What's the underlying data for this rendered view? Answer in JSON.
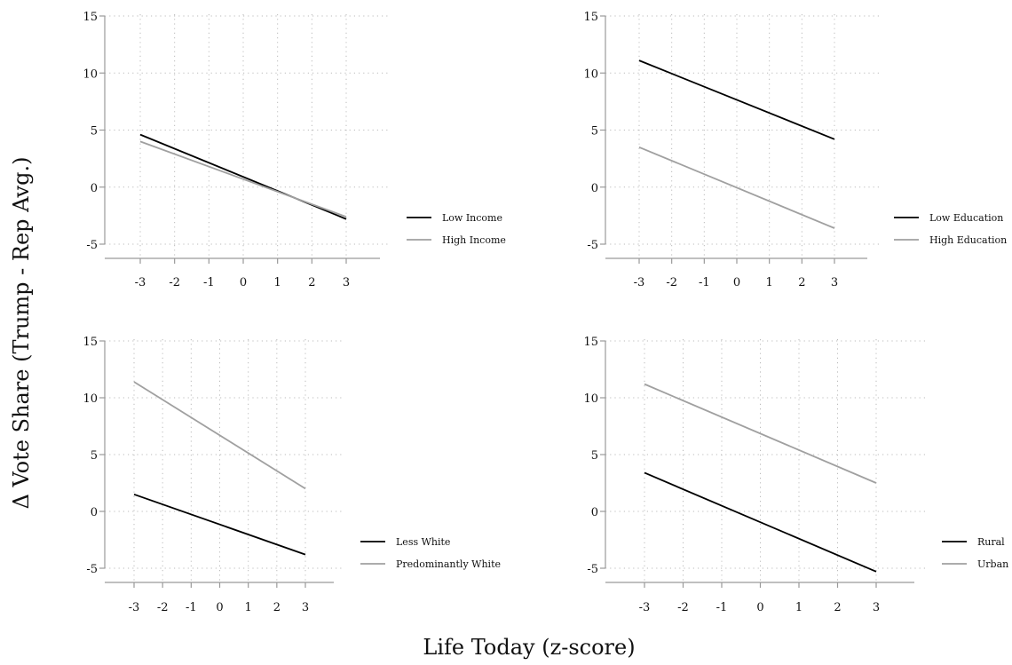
{
  "figure": {
    "ylabel": "Δ Vote Share (Trump - Rep Avg.)",
    "xlabel": "Life Today (z-score)"
  },
  "colors": {
    "low_group": "#000000",
    "high_group": "#a0a0a0",
    "grid": "#bbbbbb",
    "axis": "#9a9a9a"
  },
  "chart_data": [
    {
      "type": "line",
      "x_ticks": [
        "-3",
        "-2",
        "-1",
        "0",
        "1",
        "2",
        "3"
      ],
      "y_ticks": [
        "-5",
        "0",
        "5",
        "10",
        "15"
      ],
      "xlim": [
        -3,
        3
      ],
      "ylim": [
        -5,
        15
      ],
      "grid": true,
      "legend_position": "right",
      "series": [
        {
          "name": "Low Income",
          "x": [
            -3,
            3
          ],
          "y": [
            4.6,
            -2.8
          ],
          "color": "#000000"
        },
        {
          "name": "High Income",
          "x": [
            -3,
            3
          ],
          "y": [
            4.0,
            -2.6
          ],
          "color": "#a0a0a0"
        }
      ]
    },
    {
      "type": "line",
      "x_ticks": [
        "-3",
        "-2",
        "-1",
        "0",
        "1",
        "2",
        "3"
      ],
      "y_ticks": [
        "-5",
        "0",
        "5",
        "10",
        "15"
      ],
      "xlim": [
        -3,
        3
      ],
      "ylim": [
        -5,
        15
      ],
      "grid": true,
      "legend_position": "right",
      "series": [
        {
          "name": "Low Education",
          "x": [
            -3,
            3
          ],
          "y": [
            11.1,
            4.2
          ],
          "color": "#000000"
        },
        {
          "name": "High Education",
          "x": [
            -3,
            3
          ],
          "y": [
            3.5,
            -3.6
          ],
          "color": "#a0a0a0"
        }
      ]
    },
    {
      "type": "line",
      "x_ticks": [
        "-3",
        "-2",
        "-1",
        "0",
        "1",
        "2",
        "3"
      ],
      "y_ticks": [
        "-5",
        "0",
        "5",
        "10",
        "15"
      ],
      "xlim": [
        -3,
        3
      ],
      "ylim": [
        -5,
        15
      ],
      "grid": true,
      "legend_position": "right",
      "series": [
        {
          "name": "Less White",
          "x": [
            -3,
            3
          ],
          "y": [
            1.5,
            -3.8
          ],
          "color": "#000000"
        },
        {
          "name": "Predominantly White",
          "x": [
            -3,
            3
          ],
          "y": [
            11.4,
            2.0
          ],
          "color": "#a0a0a0"
        }
      ]
    },
    {
      "type": "line",
      "x_ticks": [
        "-3",
        "-2",
        "-1",
        "0",
        "1",
        "2",
        "3"
      ],
      "y_ticks": [
        "-5",
        "0",
        "5",
        "10",
        "15"
      ],
      "xlim": [
        -3,
        3
      ],
      "ylim": [
        -5,
        15
      ],
      "grid": true,
      "legend_position": "right",
      "series": [
        {
          "name": "Rural",
          "x": [
            -3,
            3
          ],
          "y": [
            3.4,
            -5.3
          ],
          "color": "#000000"
        },
        {
          "name": "Urban",
          "x": [
            -3,
            3
          ],
          "y": [
            11.2,
            2.5
          ],
          "color": "#a0a0a0"
        }
      ]
    }
  ]
}
